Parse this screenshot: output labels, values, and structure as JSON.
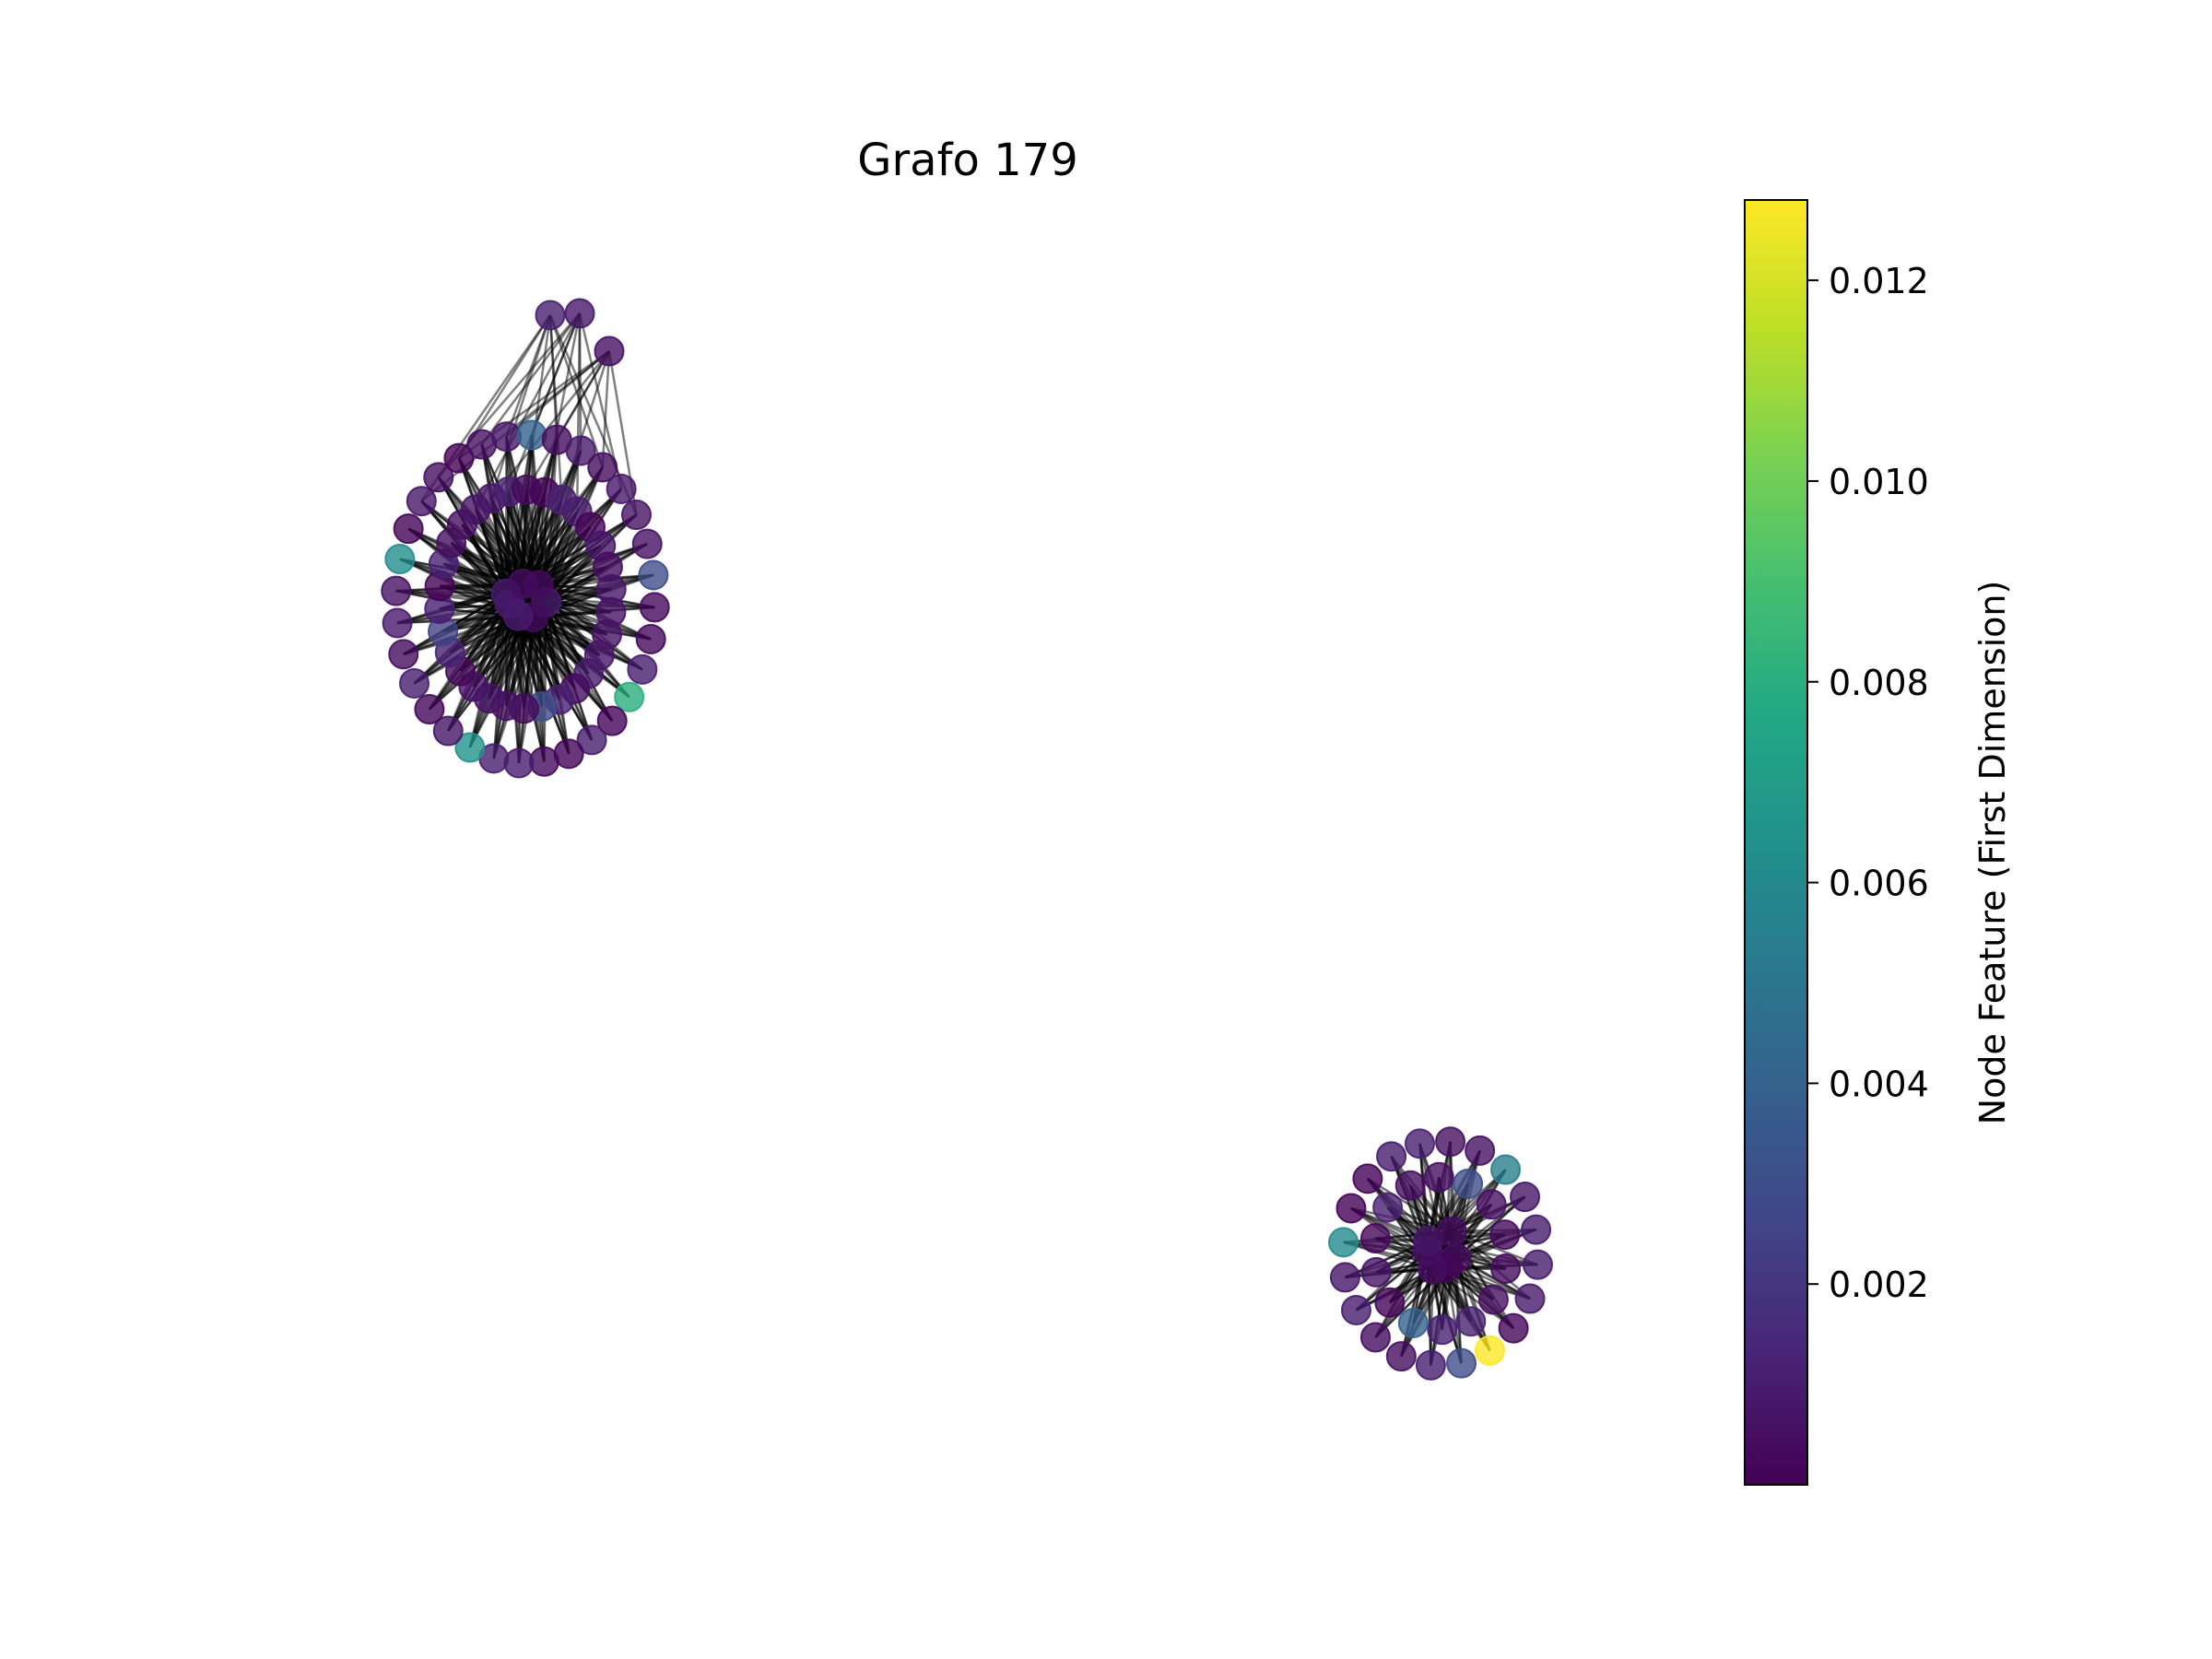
{
  "title": "Grafo 179",
  "colorbar": {
    "label": "Node Feature (First Dimension)",
    "min": 0.0,
    "max": 0.0128,
    "colormap": "viridis",
    "ticks": [
      {
        "value": 0.002,
        "label": "0.002"
      },
      {
        "value": 0.004,
        "label": "0.004"
      },
      {
        "value": 0.006,
        "label": "0.006"
      },
      {
        "value": 0.008,
        "label": "0.008"
      },
      {
        "value": 0.01,
        "label": "0.010"
      },
      {
        "value": 0.012,
        "label": "0.012"
      }
    ]
  },
  "chart_data": {
    "type": "network",
    "node_color_feature": "first dimension of node feature vector",
    "edge_color": "#000000",
    "node_alpha": 0.8,
    "components": [
      {
        "id": "component-1",
        "position": "upper-left",
        "hub_count": 7,
        "ring_node_count": 62,
        "satellite_node_count": 3,
        "notable_node_values": [
          0.008,
          0.0065,
          0.0062,
          0.004,
          0.003,
          0.003,
          0.0025
        ]
      },
      {
        "id": "component-2",
        "position": "lower-right",
        "hub_count": 6,
        "ring_node_count": 34,
        "notable_node_values": [
          0.0128,
          0.006,
          0.0055,
          0.004,
          0.003,
          0.003
        ]
      }
    ]
  }
}
